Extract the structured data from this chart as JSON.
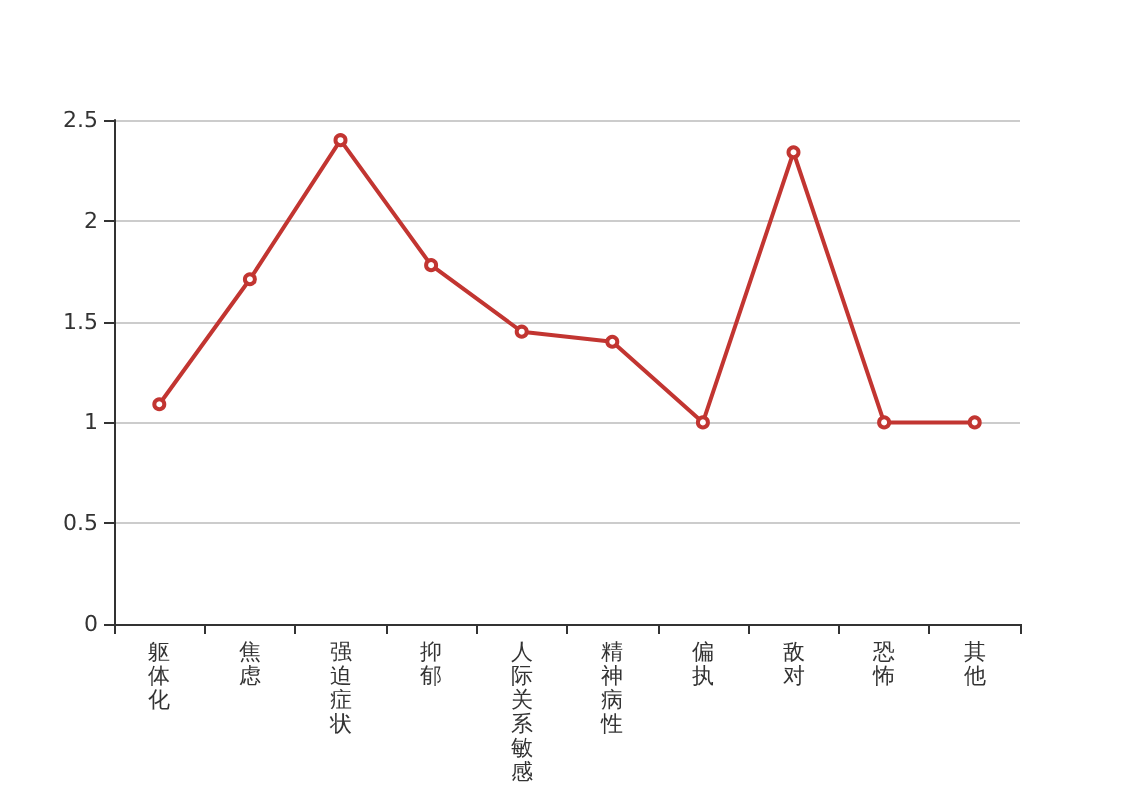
{
  "chart_data": {
    "type": "line",
    "categories": [
      "躯体化",
      "焦虑",
      "强迫症状",
      "抑郁",
      "人际关系敏感",
      "精神病性",
      "偏执",
      "敌对",
      "恐怖",
      "其他"
    ],
    "series": [
      {
        "color": "#c23531",
        "values": [
          1.09,
          1.71,
          2.4,
          1.78,
          1.45,
          1.4,
          1.0,
          2.34,
          1.0,
          1.0
        ]
      }
    ],
    "ylim": [
      0,
      2.5
    ],
    "yticks": [
      0,
      0.5,
      1,
      1.5,
      2,
      2.5
    ],
    "grid": "y",
    "marker": "circle",
    "line_style": "solid"
  }
}
